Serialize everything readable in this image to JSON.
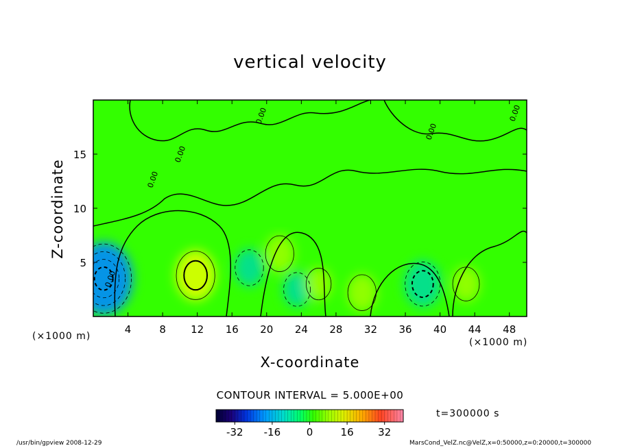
{
  "chart_data": {
    "type": "heatmap",
    "title": "vertical velocity",
    "xlabel": "X-coordinate",
    "ylabel": "Z-coordinate",
    "x_unit": "(×1000 m)",
    "y_unit": "(×1000 m)",
    "x_ticks": [
      4,
      8,
      12,
      16,
      20,
      24,
      28,
      32,
      36,
      40,
      44,
      48
    ],
    "y_ticks": [
      5,
      10,
      15
    ],
    "xlim": [
      0,
      50
    ],
    "ylim": [
      0,
      20
    ],
    "contour_interval_text": "CONTOUR INTERVAL = 5.000E+00",
    "contour_labels": [
      "0.00",
      "0.00",
      "0.00",
      "0.00",
      "0.00",
      "0.00"
    ],
    "colorbar": {
      "ticks": [
        -32,
        -16,
        0,
        16,
        32
      ],
      "range": [
        -40,
        40
      ]
    },
    "time_text": "t=300000 s",
    "features": [
      {
        "x": 1.2,
        "z": 3.5,
        "value": -22,
        "sign": "negative"
      },
      {
        "x": 11.8,
        "z": 3.8,
        "value": 12,
        "sign": "positive"
      },
      {
        "x": 21.5,
        "z": 5.8,
        "value": 6,
        "sign": "positive"
      },
      {
        "x": 18.0,
        "z": 4.5,
        "value": -6,
        "sign": "negative"
      },
      {
        "x": 23.5,
        "z": 2.5,
        "value": -5,
        "sign": "negative"
      },
      {
        "x": 26.0,
        "z": 3.0,
        "value": 4,
        "sign": "positive"
      },
      {
        "x": 31.0,
        "z": 2.2,
        "value": 6,
        "sign": "positive"
      },
      {
        "x": 38.0,
        "z": 3.0,
        "value": -10,
        "sign": "negative"
      },
      {
        "x": 43.0,
        "z": 3.0,
        "value": 5,
        "sign": "positive"
      }
    ]
  },
  "labels": {
    "x_unit": "(×1000 m)",
    "y_unit": "(×1000 m)",
    "footer_left": "/usr/bin/gpview   2008-12-29",
    "footer_right": "MarsCond_VelZ.nc@VelZ,x=0:50000,z=0:20000,t=300000"
  },
  "colors": {
    "background": "#33ff00",
    "positive": "#ccff00",
    "negative": "#00ccaa",
    "strong_negative": "#0099ff"
  }
}
